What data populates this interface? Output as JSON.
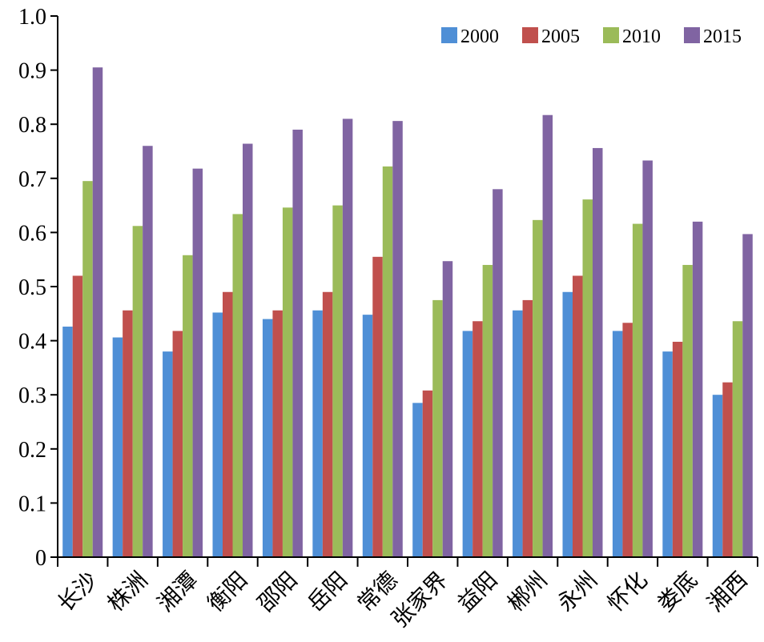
{
  "chart_data": {
    "type": "bar",
    "title": "",
    "xlabel": "",
    "ylabel": "",
    "ylim": [
      0,
      1.0
    ],
    "y_ticks": [
      "0",
      "0.1",
      "0.2",
      "0.3",
      "0.4",
      "0.5",
      "0.6",
      "0.7",
      "0.8",
      "0.9",
      "1.0"
    ],
    "grid": false,
    "legend_position": "top-right",
    "categories": [
      "长沙",
      "株洲",
      "湘潭",
      "衡阳",
      "邵阳",
      "岳阳",
      "常德",
      "张家界",
      "益阳",
      "郴州",
      "永州",
      "怀化",
      "娄底",
      "湘西"
    ],
    "series": [
      {
        "name": "2000",
        "color": "#4f8fd6",
        "values": [
          0.426,
          0.406,
          0.38,
          0.452,
          0.44,
          0.456,
          0.448,
          0.285,
          0.418,
          0.456,
          0.49,
          0.418,
          0.38,
          0.3
        ]
      },
      {
        "name": "2005",
        "color": "#c0504d",
        "values": [
          0.52,
          0.456,
          0.418,
          0.49,
          0.456,
          0.49,
          0.555,
          0.308,
          0.436,
          0.475,
          0.52,
          0.433,
          0.398,
          0.323
        ]
      },
      {
        "name": "2010",
        "color": "#9bbb59",
        "values": [
          0.695,
          0.612,
          0.558,
          0.634,
          0.646,
          0.65,
          0.722,
          0.475,
          0.54,
          0.623,
          0.661,
          0.616,
          0.54,
          0.436
        ]
      },
      {
        "name": "2015",
        "color": "#8064a2",
        "values": [
          0.905,
          0.76,
          0.718,
          0.764,
          0.79,
          0.81,
          0.806,
          0.547,
          0.68,
          0.817,
          0.756,
          0.733,
          0.62,
          0.597
        ]
      }
    ]
  }
}
